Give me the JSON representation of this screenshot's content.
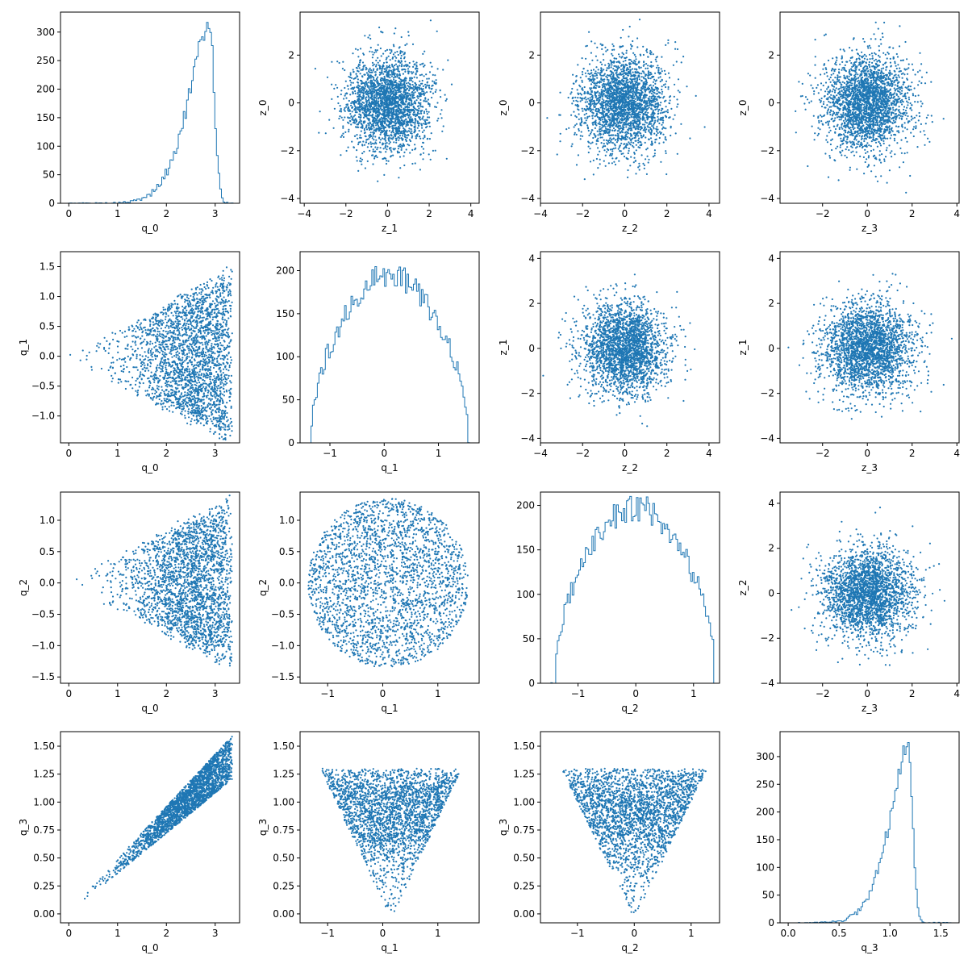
{
  "chart_data": [
    {
      "type": "histogram",
      "grid_row": 0,
      "grid_col": 0,
      "xlabel": "q_0",
      "ylabel": "",
      "xlim": [
        -0.17,
        3.5
      ],
      "ylim": [
        0,
        335
      ],
      "xticks": [
        0,
        1,
        2,
        3
      ],
      "yticks": [
        0,
        50,
        100,
        150,
        200,
        250,
        300
      ],
      "dist": {
        "kind": "neg_skew",
        "mode": 2.88,
        "spread": 0.65,
        "min": 0.0,
        "max": 3.4,
        "peak": 320
      }
    },
    {
      "type": "scatter",
      "grid_row": 0,
      "grid_col": 1,
      "xlabel": "z_1",
      "ylabel": "z_0",
      "xlim": [
        -4.2,
        4.4
      ],
      "ylim": [
        -4.2,
        3.8
      ],
      "xticks": [
        -4,
        -2,
        0,
        2,
        4
      ],
      "yticks": [
        -4,
        -2,
        0,
        2
      ],
      "sample": {
        "kind": "gauss2d",
        "n": 2500,
        "sx": 1,
        "sy": 1,
        "seed": 11
      }
    },
    {
      "type": "scatter",
      "grid_row": 0,
      "grid_col": 2,
      "xlabel": "z_2",
      "ylabel": "z_0",
      "xlim": [
        -4.0,
        4.5
      ],
      "ylim": [
        -4.2,
        3.8
      ],
      "xticks": [
        -4,
        -2,
        0,
        2,
        4
      ],
      "yticks": [
        -4,
        -2,
        0,
        2
      ],
      "sample": {
        "kind": "gauss2d",
        "n": 2500,
        "sx": 1,
        "sy": 1,
        "seed": 12
      }
    },
    {
      "type": "scatter",
      "grid_row": 0,
      "grid_col": 3,
      "xlabel": "z_3",
      "ylabel": "z_0",
      "xlim": [
        -3.9,
        4.1
      ],
      "ylim": [
        -4.2,
        3.8
      ],
      "xticks": [
        -2,
        0,
        2,
        4
      ],
      "yticks": [
        -4,
        -2,
        0,
        2
      ],
      "sample": {
        "kind": "gauss2d",
        "n": 2500,
        "sx": 1,
        "sy": 1,
        "seed": 13
      }
    },
    {
      "type": "scatter",
      "grid_row": 1,
      "grid_col": 0,
      "xlabel": "q_0",
      "ylabel": "q_1",
      "xlim": [
        -0.17,
        3.5
      ],
      "ylim": [
        -1.45,
        1.75
      ],
      "xticks": [
        0,
        1,
        2,
        3
      ],
      "yticks": [
        -1.0,
        -0.5,
        0.0,
        0.5,
        1.0,
        1.5
      ],
      "sample": {
        "kind": "cone",
        "n": 2500,
        "maxq": 3.35,
        "slope": 0.45,
        "seed": 21
      }
    },
    {
      "type": "histogram",
      "grid_row": 1,
      "grid_col": 1,
      "xlabel": "q_1",
      "ylabel": "",
      "xlim": [
        -1.55,
        1.75
      ],
      "ylim": [
        0,
        222
      ],
      "xticks": [
        -1,
        0,
        1
      ],
      "yticks": [
        0,
        50,
        100,
        150,
        200
      ],
      "dist": {
        "kind": "semicircle",
        "center": 0.1,
        "radius": 1.45,
        "min": -1.35,
        "max": 1.6,
        "peak": 195
      }
    },
    {
      "type": "scatter",
      "grid_row": 1,
      "grid_col": 2,
      "xlabel": "z_2",
      "ylabel": "z_1",
      "xlim": [
        -4.0,
        4.5
      ],
      "ylim": [
        -4.2,
        4.3
      ],
      "xticks": [
        -4,
        -2,
        0,
        2,
        4
      ],
      "yticks": [
        -4,
        -2,
        0,
        2,
        4
      ],
      "sample": {
        "kind": "gauss2d",
        "n": 2500,
        "sx": 1,
        "sy": 1,
        "seed": 22
      }
    },
    {
      "type": "scatter",
      "grid_row": 1,
      "grid_col": 3,
      "xlabel": "z_3",
      "ylabel": "z_1",
      "xlim": [
        -3.9,
        4.1
      ],
      "ylim": [
        -4.2,
        4.3
      ],
      "xticks": [
        -2,
        0,
        2,
        4
      ],
      "yticks": [
        -4,
        -2,
        0,
        2,
        4
      ],
      "sample": {
        "kind": "gauss2d",
        "n": 2500,
        "sx": 1,
        "sy": 1,
        "seed": 23
      }
    },
    {
      "type": "scatter",
      "grid_row": 2,
      "grid_col": 0,
      "xlabel": "q_0",
      "ylabel": "q_2",
      "xlim": [
        -0.17,
        3.5
      ],
      "ylim": [
        -1.6,
        1.45
      ],
      "xticks": [
        0,
        1,
        2,
        3
      ],
      "yticks": [
        -1.5,
        -1.0,
        -0.5,
        0.0,
        0.5,
        1.0
      ],
      "sample": {
        "kind": "cone",
        "n": 2500,
        "maxq": 3.35,
        "slope": 0.42,
        "seed": 31
      }
    },
    {
      "type": "scatter",
      "grid_row": 2,
      "grid_col": 1,
      "xlabel": "q_1",
      "ylabel": "q_2",
      "xlim": [
        -1.5,
        1.75
      ],
      "ylim": [
        -1.6,
        1.45
      ],
      "xticks": [
        -1,
        0,
        1
      ],
      "yticks": [
        -1.5,
        -1.0,
        -0.5,
        0.0,
        0.5,
        1.0
      ],
      "sample": {
        "kind": "disc",
        "n": 2500,
        "cx": 0.1,
        "cy": 0.0,
        "rx": 1.45,
        "ry": 1.35,
        "seed": 32
      }
    },
    {
      "type": "histogram",
      "grid_row": 2,
      "grid_col": 2,
      "xlabel": "q_2",
      "ylabel": "",
      "xlim": [
        -1.65,
        1.45
      ],
      "ylim": [
        0,
        215
      ],
      "xticks": [
        -1,
        0,
        1
      ],
      "yticks": [
        0,
        50,
        100,
        150,
        200
      ],
      "dist": {
        "kind": "semicircle",
        "center": 0.0,
        "radius": 1.4,
        "min": -1.5,
        "max": 1.35,
        "peak": 198
      }
    },
    {
      "type": "scatter",
      "grid_row": 2,
      "grid_col": 3,
      "xlabel": "z_3",
      "ylabel": "z_2",
      "xlim": [
        -3.9,
        4.1
      ],
      "ylim": [
        -4.0,
        4.5
      ],
      "xticks": [
        -2,
        0,
        2,
        4
      ],
      "yticks": [
        -4,
        -2,
        0,
        2,
        4
      ],
      "sample": {
        "kind": "gauss2d",
        "n": 2500,
        "sx": 1,
        "sy": 1,
        "seed": 33
      }
    },
    {
      "type": "scatter",
      "grid_row": 3,
      "grid_col": 0,
      "xlabel": "q_0",
      "ylabel": "q_3",
      "xlim": [
        -0.17,
        3.5
      ],
      "ylim": [
        -0.08,
        1.63
      ],
      "xticks": [
        0,
        1,
        2,
        3
      ],
      "yticks": [
        0.0,
        0.25,
        0.5,
        0.75,
        1.0,
        1.25,
        1.5
      ],
      "sample": {
        "kind": "wedge",
        "n": 2500,
        "seed": 41
      }
    },
    {
      "type": "scatter",
      "grid_row": 3,
      "grid_col": 1,
      "xlabel": "q_1",
      "ylabel": "q_3",
      "xlim": [
        -1.5,
        1.75
      ],
      "ylim": [
        -0.08,
        1.63
      ],
      "xticks": [
        -1,
        0,
        1
      ],
      "yticks": [
        0.0,
        0.25,
        0.5,
        0.75,
        1.0,
        1.25,
        1.5
      ],
      "sample": {
        "kind": "fan",
        "n": 2500,
        "center": 0.15,
        "seed": 42
      }
    },
    {
      "type": "scatter",
      "grid_row": 3,
      "grid_col": 2,
      "xlabel": "q_2",
      "ylabel": "q_3",
      "xlim": [
        -1.65,
        1.5
      ],
      "ylim": [
        -0.08,
        1.63
      ],
      "xticks": [
        -1,
        0,
        1
      ],
      "yticks": [
        0.0,
        0.25,
        0.5,
        0.75,
        1.0,
        1.25,
        1.5
      ],
      "sample": {
        "kind": "fan",
        "n": 2500,
        "center": 0.0,
        "seed": 43
      }
    },
    {
      "type": "histogram",
      "grid_row": 3,
      "grid_col": 3,
      "xlabel": "q_3",
      "ylabel": "",
      "xlim": [
        -0.08,
        1.68
      ],
      "ylim": [
        0,
        345
      ],
      "xticks": [
        0.0,
        0.5,
        1.0,
        1.5
      ],
      "yticks": [
        0,
        50,
        100,
        150,
        200,
        250,
        300
      ],
      "dist": {
        "kind": "neg_skew",
        "mode": 1.18,
        "spread": 0.28,
        "min": 0.02,
        "max": 1.6,
        "peak": 325
      }
    }
  ],
  "style": {
    "mark_color": "#1f77b4",
    "axis_color": "#000000"
  }
}
